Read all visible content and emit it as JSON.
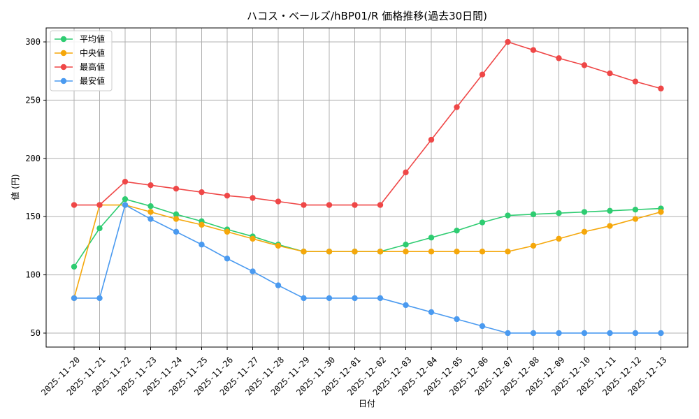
{
  "chart_data": {
    "type": "line",
    "title": "ハコス・ベールズ/hBP01/R 価格推移(過去30日間)",
    "xlabel": "日付",
    "ylabel": "値 (円)",
    "ylim": [
      38,
      312
    ],
    "yticks": [
      50,
      100,
      150,
      200,
      250,
      300
    ],
    "grid": true,
    "legend_position": "top-left",
    "categories": [
      "2025-11-20",
      "2025-11-21",
      "2025-11-22",
      "2025-11-23",
      "2025-11-24",
      "2025-11-25",
      "2025-11-26",
      "2025-11-27",
      "2025-11-28",
      "2025-11-29",
      "2025-11-30",
      "2025-12-01",
      "2025-12-02",
      "2025-12-03",
      "2025-12-04",
      "2025-12-05",
      "2025-12-06",
      "2025-12-07",
      "2025-12-08",
      "2025-12-09",
      "2025-12-10",
      "2025-12-11",
      "2025-12-12",
      "2025-12-13"
    ],
    "series": [
      {
        "name": "平均値",
        "color": "#2ecc71",
        "values": [
          107,
          140,
          165,
          159,
          152,
          146,
          139,
          133,
          126,
          120,
          120,
          120,
          120,
          126,
          132,
          138,
          145,
          151,
          152,
          153,
          154,
          155,
          156,
          157
        ]
      },
      {
        "name": "中央値",
        "color": "#f5a70a",
        "values": [
          80,
          160,
          160,
          154,
          148,
          143,
          137,
          131,
          125,
          120,
          120,
          120,
          120,
          120,
          120,
          120,
          120,
          120,
          125,
          131,
          137,
          142,
          148,
          154
        ]
      },
      {
        "name": "最高値",
        "color": "#ef4747",
        "values": [
          160,
          160,
          180,
          177,
          174,
          171,
          168,
          166,
          163,
          160,
          160,
          160,
          160,
          188,
          216,
          244,
          272,
          300,
          293,
          286,
          280,
          273,
          266,
          260
        ]
      },
      {
        "name": "最安値",
        "color": "#4a9af0",
        "values": [
          80,
          80,
          160,
          148,
          137,
          126,
          114,
          103,
          91,
          80,
          80,
          80,
          80,
          74,
          68,
          62,
          56,
          50,
          50,
          50,
          50,
          50,
          50,
          50
        ]
      }
    ]
  }
}
